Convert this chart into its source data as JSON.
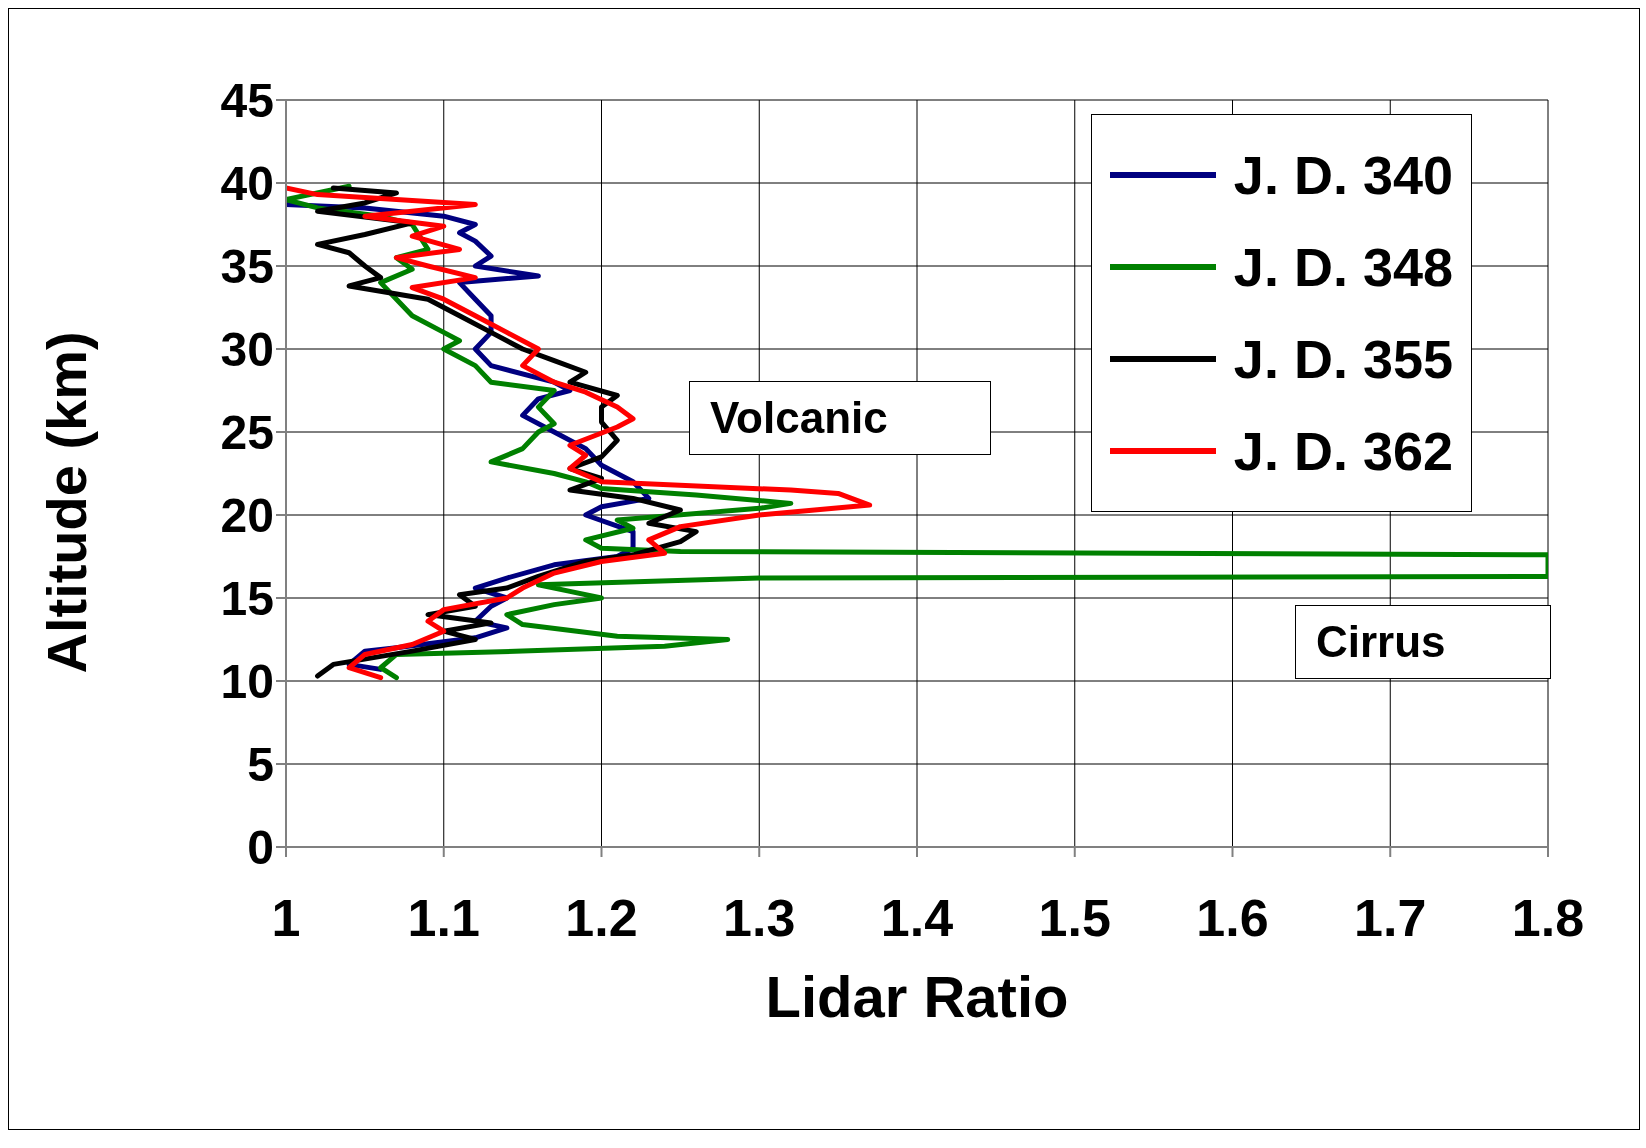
{
  "chart_data": {
    "type": "line",
    "xlabel": "Lidar Ratio",
    "ylabel": "Altitude (km)",
    "xlim": [
      1,
      1.8
    ],
    "xticks": [
      1,
      1.1,
      1.2,
      1.3,
      1.4,
      1.5,
      1.6,
      1.7,
      1.8
    ],
    "ylim": [
      0,
      45
    ],
    "yticks": [
      0,
      5,
      10,
      15,
      20,
      25,
      30,
      35,
      40,
      45
    ],
    "grid": true,
    "legend": "top right",
    "marker": "none",
    "line_style": "solid",
    "annotations": [
      "Volcanic",
      "Cirrus"
    ],
    "series": [
      {
        "name": "J. D. 340",
        "color": "#000080",
        "x": [
          1.06,
          1.04,
          1.05,
          1.07,
          1.12,
          1.14,
          1.12,
          1.13,
          1.14,
          1.12,
          1.14,
          1.17,
          1.21,
          1.22,
          1.22,
          1.19,
          1.2,
          1.23,
          1.22,
          1.2,
          1.19,
          1.17,
          1.15,
          1.16,
          1.18,
          1.17,
          1.13,
          1.12,
          1.13,
          1.13,
          1.12,
          1.11,
          1.16,
          1.12,
          1.13,
          1.12,
          1.11,
          1.12,
          1.1,
          1.05,
          1.0
        ],
        "values": [
          10.7,
          11,
          11.8,
          12,
          12.6,
          13.2,
          13.6,
          14.5,
          15,
          15.6,
          16.2,
          17,
          17.5,
          18,
          19,
          20,
          20.5,
          21,
          22,
          23,
          24,
          25,
          26,
          27,
          27.5,
          28,
          29,
          30,
          31,
          32,
          33,
          34,
          34.4,
          35,
          35.6,
          36.5,
          37,
          37.5,
          38,
          38.5,
          38.7
        ]
      },
      {
        "name": "J. D. 348",
        "color": "#008000",
        "x": [
          1.07,
          1.06,
          1.07,
          1.15,
          1.24,
          1.28,
          1.21,
          1.15,
          1.14,
          1.17,
          1.2,
          1.18,
          1.16,
          1.3,
          1.8,
          1.8,
          1.25,
          1.2,
          1.19,
          1.22,
          1.21,
          1.3,
          1.32,
          1.26,
          1.2,
          1.19,
          1.17,
          1.13,
          1.15,
          1.16,
          1.17,
          1.16,
          1.17,
          1.13,
          1.12,
          1.1,
          1.11,
          1.1,
          1.08,
          1.07,
          1.06,
          1.08,
          1.07,
          1.09,
          1.08,
          1.06,
          1.02,
          1.0,
          1.04
        ],
        "values": [
          10.2,
          10.8,
          11.6,
          11.8,
          12.1,
          12.5,
          12.7,
          13.4,
          14,
          14.6,
          15,
          15.4,
          15.8,
          16.2,
          16.3,
          17.6,
          17.8,
          18,
          18.5,
          19.2,
          19.7,
          20.4,
          20.7,
          21.2,
          21.6,
          22,
          22.5,
          23.2,
          24,
          25,
          25.5,
          26.5,
          27.5,
          28,
          29,
          30,
          30.5,
          31,
          32,
          33,
          34,
          34.8,
          35.5,
          36,
          37.5,
          38,
          38.5,
          39,
          39.8
        ]
      },
      {
        "name": "J. D. 355",
        "color": "#000000",
        "x": [
          1.02,
          1.03,
          1.08,
          1.12,
          1.1,
          1.13,
          1.09,
          1.12,
          1.11,
          1.14,
          1.16,
          1.19,
          1.22,
          1.25,
          1.26,
          1.23,
          1.25,
          1.22,
          1.18,
          1.2,
          1.18,
          1.2,
          1.21,
          1.2,
          1.2,
          1.21,
          1.18,
          1.19,
          1.17,
          1.15,
          1.13,
          1.11,
          1.09,
          1.04,
          1.06,
          1.05,
          1.04,
          1.02,
          1.05,
          1.08,
          1.02,
          1.05,
          1.07,
          1.03
        ],
        "values": [
          10.3,
          11,
          11.8,
          12.5,
          13,
          13.5,
          14,
          14.5,
          15.2,
          15.6,
          16.3,
          17.2,
          17.6,
          18.4,
          19,
          19.5,
          20.3,
          21,
          21.5,
          22.2,
          22.8,
          23.5,
          24.5,
          25.6,
          26.5,
          27.2,
          28,
          28.6,
          29.3,
          30,
          31,
          32,
          33,
          33.8,
          34.3,
          35,
          35.8,
          36.3,
          36.9,
          37.6,
          38.3,
          38.8,
          39.4,
          39.7
        ]
      },
      {
        "name": "J. D. 362",
        "color": "#ff0000",
        "x": [
          1.06,
          1.04,
          1.05,
          1.08,
          1.1,
          1.09,
          1.1,
          1.14,
          1.15,
          1.17,
          1.2,
          1.24,
          1.23,
          1.25,
          1.3,
          1.37,
          1.35,
          1.32,
          1.2,
          1.18,
          1.19,
          1.18,
          1.21,
          1.22,
          1.21,
          1.19,
          1.17,
          1.15,
          1.16,
          1.14,
          1.12,
          1.1,
          1.08,
          1.12,
          1.09,
          1.07,
          1.11,
          1.08,
          1.1,
          1.05,
          1.12,
          1.02,
          1.0
        ],
        "values": [
          10.2,
          10.8,
          11.6,
          12.2,
          13,
          13.6,
          14.3,
          15,
          15.6,
          16.5,
          17.2,
          17.7,
          18.5,
          19.3,
          20,
          20.6,
          21.3,
          21.5,
          22,
          22.8,
          23.6,
          24.2,
          25.3,
          25.8,
          26.5,
          27.4,
          28,
          29,
          30,
          31,
          32,
          33,
          33.7,
          34.3,
          35,
          35.5,
          36,
          36.8,
          37.4,
          38,
          38.7,
          39.3,
          39.7
        ]
      }
    ]
  }
}
